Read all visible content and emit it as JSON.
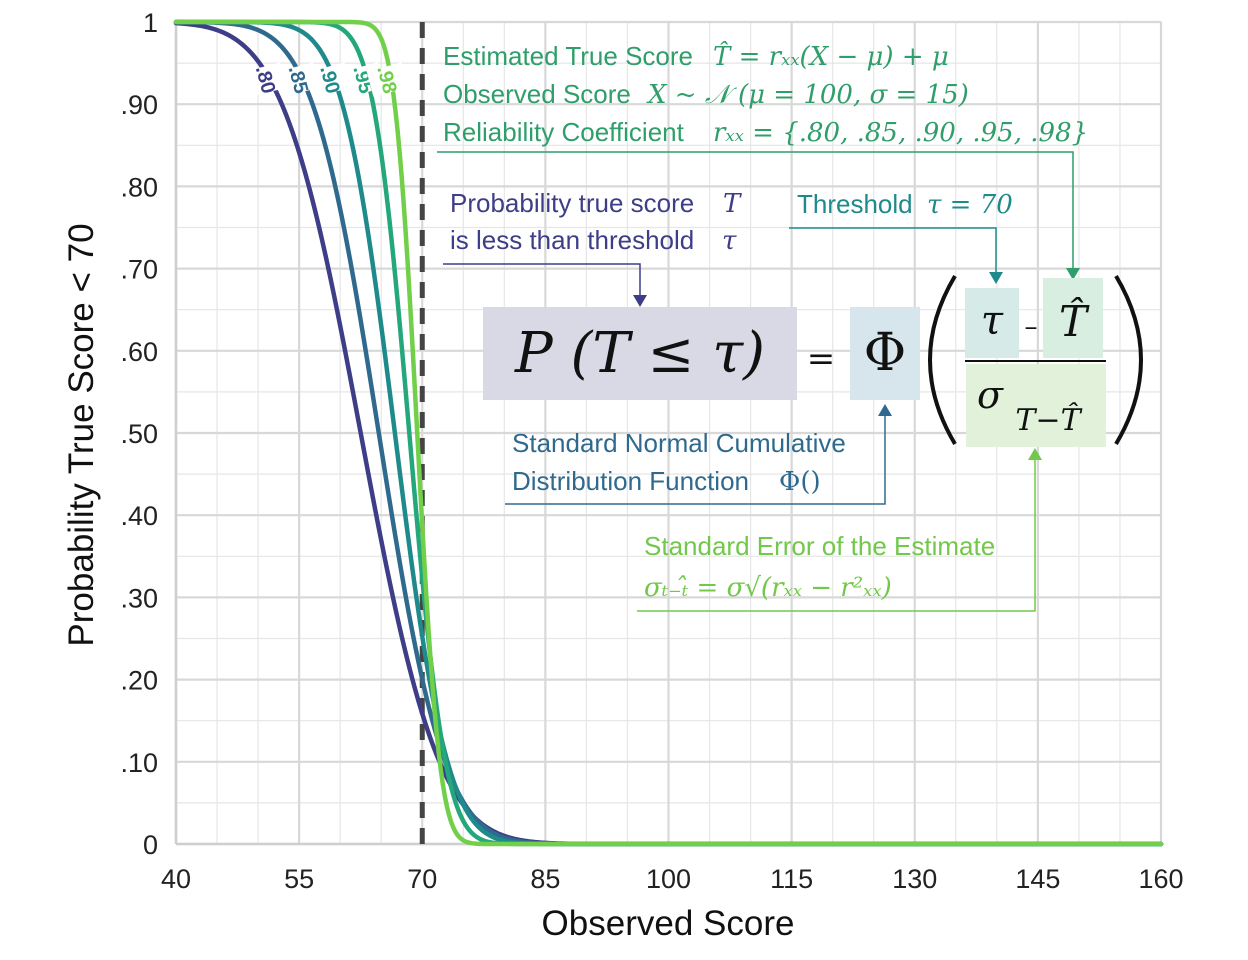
{
  "chart_data": {
    "type": "line",
    "xlabel": "Observed Score",
    "ylabel": "Probability True Score < 70",
    "xlim": [
      40,
      160
    ],
    "ylim": [
      0,
      1
    ],
    "x_ticks": [
      "40",
      "55",
      "70",
      "85",
      "100",
      "115",
      "130",
      "145",
      "160"
    ],
    "y_ticks": [
      "0",
      ".10",
      ".20",
      ".30",
      ".40",
      ".50",
      ".60",
      ".70",
      ".80",
      ".90",
      "1"
    ],
    "grid": true,
    "mu": 100,
    "sigma": 15,
    "threshold": 70,
    "series": [
      {
        "name": ".80",
        "reliability": 0.8,
        "color": "#3e3d87"
      },
      {
        "name": ".85",
        "reliability": 0.85,
        "color": "#2f6a8e"
      },
      {
        "name": ".90",
        "reliability": 0.9,
        "color": "#1f8a8b"
      },
      {
        "name": ".95",
        "reliability": 0.95,
        "color": "#25a77c"
      },
      {
        "name": ".98",
        "reliability": 0.98,
        "color": "#72cf4a"
      }
    ],
    "colors": {
      "navy": "#3e3d87",
      "blue": "#2f6a8e",
      "teal": "#1f8a8b",
      "green": "#25a77c",
      "lime": "#6dc34a"
    }
  },
  "annotations": {
    "estimated_true_score_label": "Estimated True Score",
    "estimated_true_score_formula": "T̂ = rₓₓ(X − μ) + μ",
    "observed_score_label": "Observed Score",
    "observed_score_formula": "X ~ 𝒩 (μ = 100, σ = 15)",
    "reliability_label": "Reliability Coefficient",
    "reliability_formula": "rₓₓ = {.80, .85, .90, .95, .98}",
    "probability_line1": "Probability true score",
    "probability_T": "T",
    "probability_line2": "is less than threshold",
    "probability_tau": "τ",
    "threshold_label": "Threshold",
    "threshold_formula": "τ = 70",
    "cdf_line1": "Standard Normal Cumulative",
    "cdf_line2": "Distribution Function",
    "cdf_symbol": "Φ()",
    "see_label": "Standard Error of the Estimate",
    "see_formula": "σₜ₋ₜ̂ = σ√(rₓₓ − r²ₓₓ)"
  },
  "formula": {
    "lhs": "P (T ≤ τ)",
    "equals": "=",
    "phi": "Φ",
    "numerator_tau": "τ",
    "minus": "–",
    "numerator_That": "T̂",
    "denominator": "σ",
    "denominator_sub": "T−T̂"
  }
}
